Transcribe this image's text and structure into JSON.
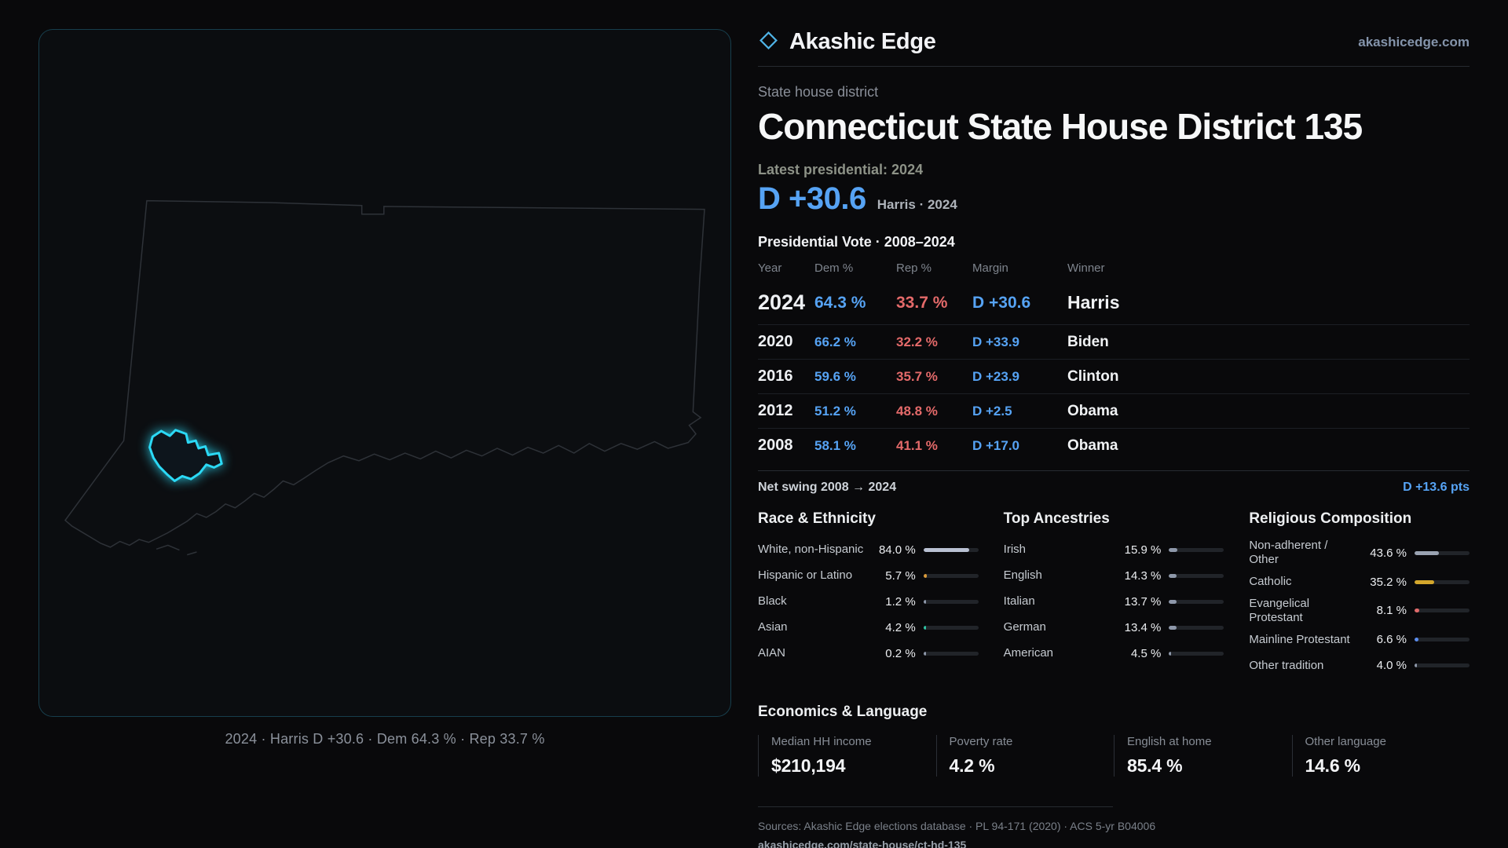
{
  "brand": {
    "name": "Akashic Edge",
    "domain": "akashicedge.com"
  },
  "header": {
    "kicker": "State house district",
    "title": "Connecticut State House District 135",
    "latest_label": "Latest presidential: 2024",
    "headline_margin": "D +30.6",
    "headline_context": "Harris · 2024"
  },
  "map": {
    "caption": "2024 · Harris D +30.6 · Dem 64.3 % · Rep 33.7 %",
    "district_outline_color": "#2bd9f5"
  },
  "theme": {
    "dem_blue": "#56a3f4",
    "rep_red": "#e46a6a",
    "accent_cyan": "#2bd9f5",
    "catholic_gold": "#d4a72c",
    "asian_teal": "#2fc4a4",
    "hispanic_orange": "#d99a3a"
  },
  "chart_data": [
    {
      "name": "presidential_vote",
      "type": "table",
      "title": "Presidential Vote · 2008–2024",
      "columns": [
        "Year",
        "Dem %",
        "Rep %",
        "Margin",
        "Winner"
      ],
      "rows": [
        {
          "year": "2024",
          "dem": "64.3 %",
          "rep": "33.7 %",
          "margin": "D +30.6",
          "winner": "Harris"
        },
        {
          "year": "2020",
          "dem": "66.2 %",
          "rep": "32.2 %",
          "margin": "D +33.9",
          "winner": "Biden"
        },
        {
          "year": "2016",
          "dem": "59.6 %",
          "rep": "35.7 %",
          "margin": "D +23.9",
          "winner": "Clinton"
        },
        {
          "year": "2012",
          "dem": "51.2 %",
          "rep": "48.8 %",
          "margin": "D +2.5",
          "winner": "Obama"
        },
        {
          "year": "2008",
          "dem": "58.1 %",
          "rep": "41.1 %",
          "margin": "D +17.0",
          "winner": "Obama"
        }
      ],
      "net_swing": {
        "label": "Net swing 2008 → 2024",
        "value": "D +13.6 pts"
      }
    },
    {
      "name": "race_ethnicity",
      "type": "bar",
      "title": "Race & Ethnicity",
      "ylim": [
        0,
        100
      ],
      "items": [
        {
          "label": "White, non-Hispanic",
          "value": 84.0,
          "display": "84.0 %",
          "color": "#b9c1d3"
        },
        {
          "label": "Hispanic or Latino",
          "value": 5.7,
          "display": "5.7 %",
          "color": "#d99a3a"
        },
        {
          "label": "Black",
          "value": 1.2,
          "display": "1.2 %",
          "color": "#8e98aa"
        },
        {
          "label": "Asian",
          "value": 4.2,
          "display": "4.2 %",
          "color": "#2fc4a4"
        },
        {
          "label": "AIAN",
          "value": 0.2,
          "display": "0.2 %",
          "color": "#8e98aa"
        }
      ]
    },
    {
      "name": "top_ancestries",
      "type": "bar",
      "title": "Top Ancestries",
      "ylim": [
        0,
        100
      ],
      "items": [
        {
          "label": "Irish",
          "value": 15.9,
          "display": "15.9 %",
          "color": "#8e98aa"
        },
        {
          "label": "English",
          "value": 14.3,
          "display": "14.3 %",
          "color": "#8e98aa"
        },
        {
          "label": "Italian",
          "value": 13.7,
          "display": "13.7 %",
          "color": "#8e98aa"
        },
        {
          "label": "German",
          "value": 13.4,
          "display": "13.4 %",
          "color": "#8e98aa"
        },
        {
          "label": "American",
          "value": 4.5,
          "display": "4.5 %",
          "color": "#8e98aa"
        }
      ]
    },
    {
      "name": "religious_composition",
      "type": "bar",
      "title": "Religious Composition",
      "ylim": [
        0,
        100
      ],
      "items": [
        {
          "label": "Non-adherent / Other",
          "value": 43.6,
          "display": "43.6 %",
          "color": "#9aa3b2"
        },
        {
          "label": "Catholic",
          "value": 35.2,
          "display": "35.2 %",
          "color": "#d4a72c"
        },
        {
          "label": "Evangelical Protestant",
          "value": 8.1,
          "display": "8.1 %",
          "color": "#e06a6a"
        },
        {
          "label": "Mainline Protestant",
          "value": 6.6,
          "display": "6.6 %",
          "color": "#5b8def"
        },
        {
          "label": "Other tradition",
          "value": 4.0,
          "display": "4.0 %",
          "color": "#8e98aa"
        }
      ]
    },
    {
      "name": "economics_language",
      "type": "table",
      "title": "Economics & Language",
      "stats": [
        {
          "label": "Median HH income",
          "value": "$210,194"
        },
        {
          "label": "Poverty rate",
          "value": "4.2 %"
        },
        {
          "label": "English at home",
          "value": "85.4 %"
        },
        {
          "label": "Other language",
          "value": "14.6 %"
        }
      ]
    }
  ],
  "footer": {
    "sources": "Sources: Akashic Edge elections database · PL 94-171 (2020) · ACS 5-yr B04006",
    "permalink": "akashicedge.com/state-house/ct-hd-135"
  }
}
